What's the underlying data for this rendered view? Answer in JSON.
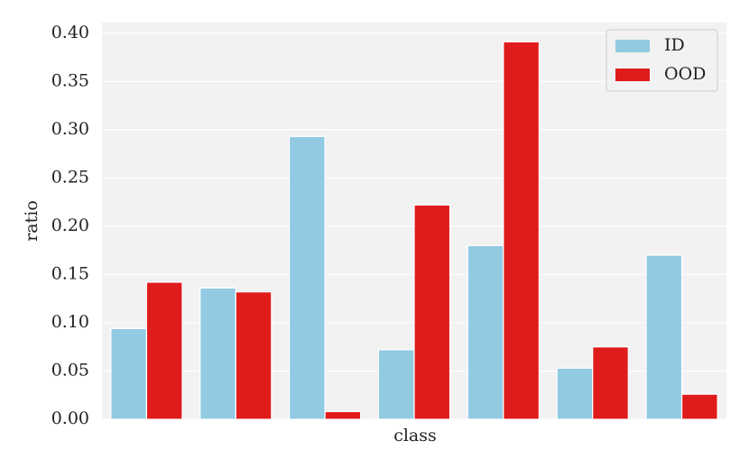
{
  "chart_data": {
    "type": "bar",
    "x_label": "class",
    "y_label": "ratio",
    "categories": [
      null,
      null,
      null,
      null,
      null,
      null,
      null
    ],
    "series": [
      {
        "name": "ID",
        "color": "#92cae2",
        "values": [
          0.094,
          0.136,
          0.293,
          0.072,
          0.18,
          0.053,
          0.17
        ]
      },
      {
        "name": "OOD",
        "color": "#e01b1b",
        "values": [
          0.142,
          0.132,
          0.008,
          0.222,
          0.391,
          0.075,
          0.026
        ]
      }
    ],
    "ylim": [
      0,
      0.411
    ],
    "yticks": [
      {
        "value": 0,
        "label": "0.00"
      },
      {
        "value": 0.05,
        "label": "0.05"
      },
      {
        "value": 0.1,
        "label": "0.10"
      },
      {
        "value": 0.15,
        "label": "0.15"
      },
      {
        "value": 0.2,
        "label": "0.20"
      },
      {
        "value": 0.25,
        "label": "0.25"
      },
      {
        "value": 0.3,
        "label": "0.30"
      },
      {
        "value": 0.35,
        "label": "0.35"
      },
      {
        "value": 0.4,
        "label": "0.40"
      }
    ],
    "grid": true,
    "legend": "upper-right"
  }
}
